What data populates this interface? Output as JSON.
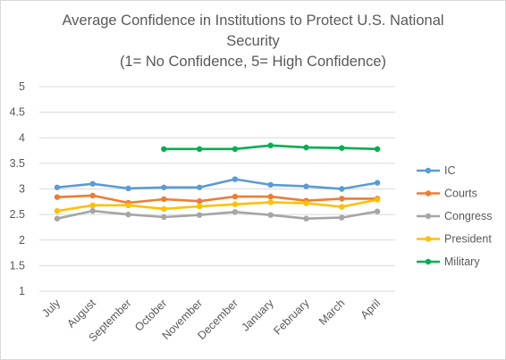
{
  "chart_data": {
    "type": "line",
    "title": "Average Confidence in Institutions to Protect U.S. National Security",
    "title_lines": [
      "Average Confidence in Institutions to Protect U.S. National",
      "Security",
      "(1= No Confidence, 5= High Confidence)"
    ],
    "xlabel": "",
    "ylabel": "",
    "categories": [
      "July",
      "August",
      "September",
      "October",
      "November",
      "December",
      "January",
      "February",
      "March",
      "April"
    ],
    "ylim": [
      1,
      5
    ],
    "yticks": [
      "1",
      "1.5",
      "2",
      "2.5",
      "3",
      "3.5",
      "4",
      "4.5",
      "5"
    ],
    "grid": "horizontal",
    "legend_position": "right",
    "series": [
      {
        "name": "IC",
        "color": "#5b9bd5",
        "values": [
          3.03,
          3.1,
          3.01,
          3.03,
          3.03,
          3.19,
          3.08,
          3.05,
          3.0,
          3.12
        ]
      },
      {
        "name": "Courts",
        "color": "#ed7d31",
        "values": [
          2.84,
          2.87,
          2.73,
          2.8,
          2.76,
          2.85,
          2.85,
          2.77,
          2.81,
          2.81
        ]
      },
      {
        "name": "Congress",
        "color": "#a5a5a5",
        "values": [
          2.42,
          2.57,
          2.5,
          2.45,
          2.49,
          2.55,
          2.49,
          2.42,
          2.44,
          2.56
        ]
      },
      {
        "name": "President",
        "color": "#ffc000",
        "values": [
          2.57,
          2.68,
          2.68,
          2.61,
          2.66,
          2.7,
          2.74,
          2.72,
          2.65,
          2.79
        ]
      },
      {
        "name": "Military",
        "color": "#00b050",
        "values": [
          null,
          null,
          null,
          3.78,
          3.78,
          3.78,
          3.85,
          3.81,
          3.8,
          3.78
        ]
      }
    ]
  }
}
